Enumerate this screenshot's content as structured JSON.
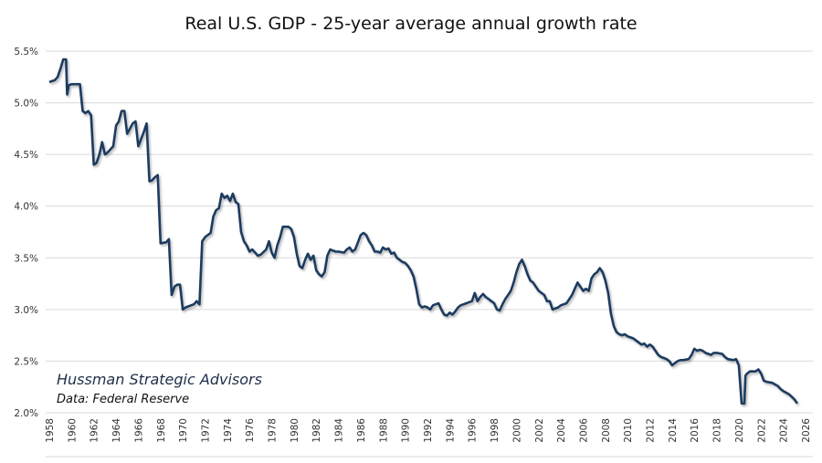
{
  "chart_data": {
    "type": "line",
    "title": "Real U.S. GDP - 25-year average annual growth rate",
    "xlabel": "",
    "ylabel": "",
    "xlim": [
      1958,
      2026
    ],
    "ylim": [
      2.0,
      5.5
    ],
    "x_ticks": [
      "1958",
      "1960",
      "1962",
      "1964",
      "1966",
      "1968",
      "1970",
      "1972",
      "1974",
      "1976",
      "1978",
      "1980",
      "1982",
      "1984",
      "1986",
      "1988",
      "1990",
      "1992",
      "1994",
      "1996",
      "1998",
      "2000",
      "2002",
      "2004",
      "2006",
      "2008",
      "2010",
      "2012",
      "2014",
      "2016",
      "2018",
      "2020",
      "2022",
      "2024",
      "2026"
    ],
    "y_ticks": [
      "2.0%",
      "2.5%",
      "3.0%",
      "3.5%",
      "4.0%",
      "4.5%",
      "5.0%",
      "5.5%"
    ],
    "y_tick_values": [
      2.0,
      2.5,
      3.0,
      3.5,
      4.0,
      4.5,
      5.0,
      5.5
    ],
    "grid": "horizontal",
    "line_color": "#1f3a5f",
    "annotations": [
      "Hussman Strategic Advisors",
      "Data: Federal Reserve"
    ],
    "series": [
      {
        "x": [
          1958.0,
          1958.5,
          1958.75,
          1959.0,
          1959.25,
          1959.5,
          1959.6,
          1959.75,
          1960.0,
          1960.75,
          1961.0,
          1961.25,
          1961.5,
          1961.75,
          1962.0,
          1962.25,
          1962.5,
          1962.75,
          1963.0,
          1963.25,
          1963.5,
          1963.75,
          1964.0,
          1964.25,
          1964.5,
          1964.75,
          1965.0,
          1965.25,
          1965.5,
          1965.75,
          1966.0,
          1966.25,
          1966.5,
          1966.75,
          1967.0,
          1967.25,
          1967.5,
          1967.75,
          1968.0,
          1968.5,
          1968.75,
          1969.0,
          1969.25,
          1969.5,
          1969.75,
          1970.0,
          1970.25,
          1970.5,
          1970.75,
          1971.0,
          1971.25,
          1971.5,
          1971.75,
          1972.0,
          1972.25,
          1972.5,
          1972.75,
          1973.0,
          1973.25,
          1973.5,
          1973.75,
          1974.0,
          1974.25,
          1974.5,
          1974.75,
          1975.0,
          1975.25,
          1975.5,
          1975.75,
          1976.0,
          1976.25,
          1976.5,
          1976.75,
          1977.0,
          1977.5,
          1977.75,
          1978.0,
          1978.25,
          1978.5,
          1978.75,
          1979.0,
          1979.5,
          1979.75,
          1980.0,
          1980.25,
          1980.5,
          1980.75,
          1981.0,
          1981.25,
          1981.5,
          1981.75,
          1982.0,
          1982.25,
          1982.5,
          1982.75,
          1983.0,
          1983.25,
          1983.5,
          1983.75,
          1984.0,
          1984.5,
          1984.75,
          1985.0,
          1985.25,
          1985.5,
          1985.75,
          1986.0,
          1986.25,
          1986.5,
          1986.75,
          1987.0,
          1987.25,
          1987.5,
          1987.75,
          1988.0,
          1988.25,
          1988.5,
          1988.75,
          1989.0,
          1989.25,
          1989.5,
          1989.75,
          1990.0,
          1990.25,
          1990.5,
          1990.75,
          1991.0,
          1991.25,
          1991.5,
          1991.75,
          1992.0,
          1992.25,
          1992.5,
          1992.75,
          1993.0,
          1993.25,
          1993.5,
          1993.75,
          1994.0,
          1994.25,
          1994.5,
          1994.75,
          1995.0,
          1995.5,
          1995.75,
          1996.0,
          1996.25,
          1996.5,
          1996.75,
          1997.0,
          1997.25,
          1997.5,
          1997.75,
          1998.0,
          1998.25,
          1998.5,
          1998.75,
          1999.0,
          1999.25,
          1999.5,
          1999.75,
          2000.0,
          2000.25,
          2000.5,
          2000.75,
          2001.0,
          2001.25,
          2001.5,
          2001.75,
          2002.0,
          2002.5,
          2002.75,
          2003.0,
          2003.25,
          2003.5,
          2003.75,
          2004.0,
          2004.5,
          2004.75,
          2005.0,
          2005.25,
          2005.5,
          2005.75,
          2006.0,
          2006.25,
          2006.5,
          2006.75,
          2007.0,
          2007.25,
          2007.5,
          2007.75,
          2008.0,
          2008.25,
          2008.5,
          2008.75,
          2009.0,
          2009.25,
          2009.5,
          2009.75,
          2010.0,
          2010.5,
          2010.75,
          2011.0,
          2011.25,
          2011.5,
          2011.75,
          2012.0,
          2012.25,
          2012.5,
          2012.75,
          2013.0,
          2013.25,
          2013.5,
          2013.75,
          2014.0,
          2014.25,
          2014.5,
          2014.75,
          2015.0,
          2015.5,
          2015.75,
          2016.0,
          2016.25,
          2016.5,
          2016.75,
          2017.0,
          2017.5,
          2017.75,
          2018.0,
          2018.5,
          2018.75,
          2019.0,
          2019.5,
          2019.75,
          2020.0,
          2020.25,
          2020.5,
          2020.6,
          2020.75,
          2021.0,
          2021.5,
          2021.75,
          2022.0,
          2022.25,
          2022.5,
          2023.0,
          2023.5,
          2023.75,
          2024.0,
          2024.5,
          2025.0,
          2025.25
        ],
        "y": [
          5.2,
          5.22,
          5.25,
          5.33,
          5.42,
          5.42,
          5.08,
          5.17,
          5.18,
          5.18,
          4.92,
          4.9,
          4.92,
          4.88,
          4.4,
          4.42,
          4.5,
          4.62,
          4.5,
          4.52,
          4.55,
          4.58,
          4.78,
          4.82,
          4.92,
          4.92,
          4.7,
          4.75,
          4.8,
          4.82,
          4.58,
          4.65,
          4.72,
          4.8,
          4.24,
          4.25,
          4.28,
          4.3,
          3.64,
          3.65,
          3.68,
          3.14,
          3.22,
          3.24,
          3.24,
          3.0,
          3.02,
          3.03,
          3.04,
          3.05,
          3.08,
          3.05,
          3.66,
          3.7,
          3.72,
          3.74,
          3.9,
          3.96,
          3.98,
          4.12,
          4.08,
          4.1,
          4.05,
          4.12,
          4.04,
          4.02,
          3.75,
          3.66,
          3.62,
          3.56,
          3.58,
          3.55,
          3.52,
          3.53,
          3.58,
          3.66,
          3.55,
          3.5,
          3.62,
          3.7,
          3.8,
          3.8,
          3.78,
          3.7,
          3.54,
          3.42,
          3.4,
          3.48,
          3.54,
          3.48,
          3.52,
          3.38,
          3.34,
          3.32,
          3.36,
          3.52,
          3.58,
          3.57,
          3.56,
          3.56,
          3.55,
          3.58,
          3.6,
          3.56,
          3.58,
          3.65,
          3.72,
          3.74,
          3.72,
          3.66,
          3.62,
          3.56,
          3.56,
          3.55,
          3.6,
          3.58,
          3.59,
          3.54,
          3.55,
          3.5,
          3.48,
          3.46,
          3.45,
          3.42,
          3.38,
          3.32,
          3.2,
          3.05,
          3.02,
          3.03,
          3.02,
          3.0,
          3.04,
          3.05,
          3.06,
          3.0,
          2.95,
          2.94,
          2.97,
          2.95,
          2.98,
          3.02,
          3.04,
          3.06,
          3.07,
          3.08,
          3.16,
          3.08,
          3.12,
          3.15,
          3.12,
          3.1,
          3.08,
          3.06,
          3.0,
          2.99,
          3.05,
          3.1,
          3.14,
          3.18,
          3.26,
          3.36,
          3.44,
          3.48,
          3.42,
          3.34,
          3.28,
          3.26,
          3.22,
          3.18,
          3.14,
          3.08,
          3.08,
          3.0,
          3.01,
          3.02,
          3.04,
          3.06,
          3.1,
          3.14,
          3.2,
          3.26,
          3.22,
          3.18,
          3.2,
          3.18,
          3.3,
          3.34,
          3.36,
          3.4,
          3.36,
          3.28,
          3.16,
          2.96,
          2.84,
          2.78,
          2.76,
          2.75,
          2.76,
          2.74,
          2.72,
          2.7,
          2.68,
          2.66,
          2.67,
          2.64,
          2.66,
          2.64,
          2.6,
          2.56,
          2.54,
          2.53,
          2.52,
          2.5,
          2.46,
          2.48,
          2.5,
          2.51,
          2.51,
          2.52,
          2.56,
          2.62,
          2.6,
          2.61,
          2.6,
          2.58,
          2.56,
          2.58,
          2.58,
          2.57,
          2.54,
          2.52,
          2.51,
          2.52,
          2.46,
          2.09,
          2.09,
          2.36,
          2.38,
          2.4,
          2.4,
          2.42,
          2.38,
          2.31,
          2.3,
          2.29,
          2.26,
          2.23,
          2.21,
          2.18,
          2.13,
          2.09
        ]
      }
    ]
  }
}
